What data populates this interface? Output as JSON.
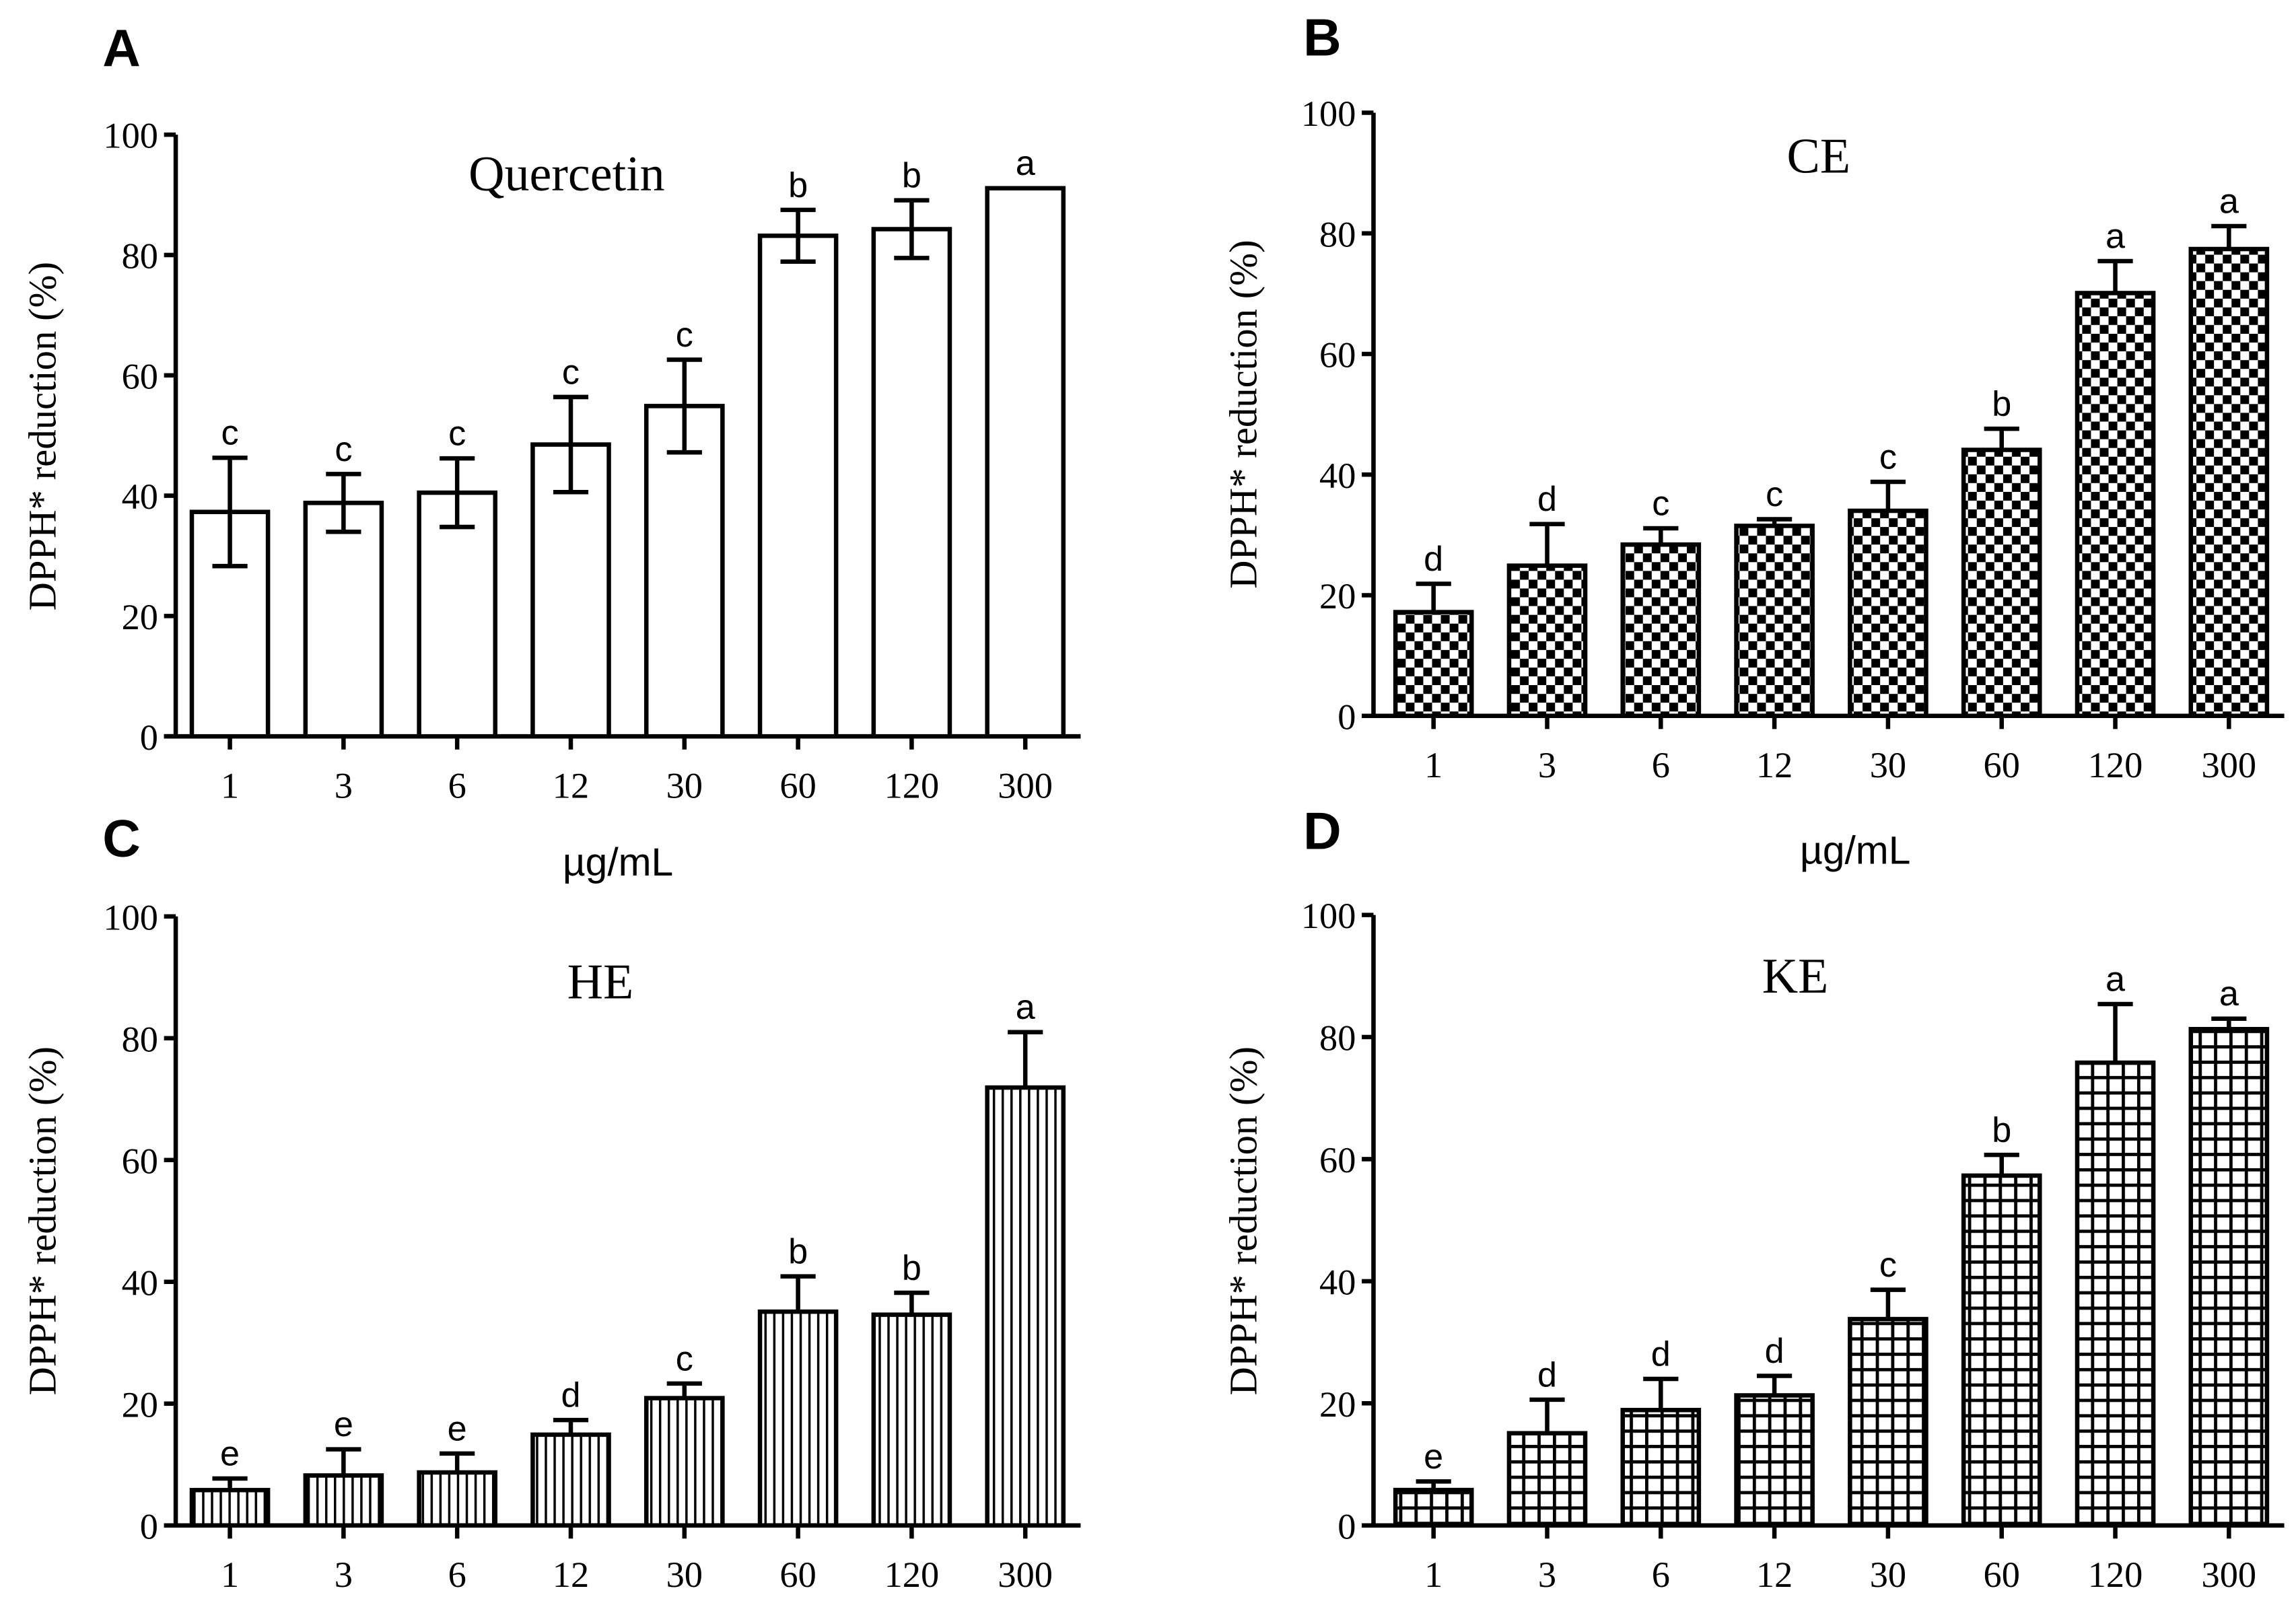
{
  "chart_data": [
    {
      "type": "bar",
      "panel": "A",
      "title": "Quercetin",
      "xlabel": "µg/mL",
      "ylabel": "DPPH* reduction (%)",
      "ylim": [
        0,
        100
      ],
      "yticks": [
        "0",
        "20",
        "40",
        "60",
        "80",
        "100"
      ],
      "pattern": "open",
      "categories": [
        "1",
        "3",
        "6",
        "12",
        "30",
        "60",
        "120",
        "300"
      ],
      "values": [
        37.3,
        38.8,
        40.5,
        48.5,
        54.9,
        83.2,
        84.3,
        91.1
      ],
      "errors": [
        9.0,
        4.8,
        5.7,
        7.9,
        7.7,
        4.3,
        4.8,
        0
      ],
      "error_style": "both",
      "letters": [
        "c",
        "c",
        "c",
        "c",
        "c",
        "b",
        "b",
        "a"
      ]
    },
    {
      "type": "bar",
      "panel": "B",
      "title": "CE",
      "xlabel": "µg/mL",
      "ylabel": "DPPH* reduction (%)",
      "ylim": [
        0,
        100
      ],
      "yticks": [
        "0",
        "20",
        "40",
        "60",
        "80",
        "100"
      ],
      "pattern": "checker",
      "categories": [
        "1",
        "3",
        "6",
        "12",
        "30",
        "60",
        "120",
        "300"
      ],
      "values": [
        17.2,
        24.9,
        28.4,
        31.5,
        34.0,
        44.1,
        70.1,
        77.4
      ],
      "errors": [
        4.7,
        6.9,
        2.7,
        1.1,
        4.8,
        3.5,
        5.3,
        3.8
      ],
      "error_style": "up",
      "letters": [
        "d",
        "d",
        "c",
        "c",
        "c",
        "b",
        "a",
        "a"
      ]
    },
    {
      "type": "bar",
      "panel": "C",
      "title": "HE",
      "ylabel": "DPPH* reduction (%)",
      "ylim": [
        0,
        100
      ],
      "yticks": [
        "0",
        "20",
        "40",
        "60",
        "80",
        "100"
      ],
      "pattern": "vstripe",
      "categories": [
        "1",
        "3",
        "6",
        "12",
        "30",
        "60",
        "120",
        "300"
      ],
      "values": [
        5.8,
        8.2,
        8.7,
        14.9,
        20.9,
        35.1,
        34.6,
        71.9
      ],
      "errors": [
        1.9,
        4.3,
        3.1,
        2.4,
        2.4,
        5.8,
        3.6,
        9.1
      ],
      "error_style": "up",
      "letters": [
        "e",
        "e",
        "e",
        "d",
        "c",
        "b",
        "b",
        "a"
      ]
    },
    {
      "type": "bar",
      "panel": "D",
      "title": "KE",
      "ylabel": "DPPH* reduction (%)",
      "ylim": [
        0,
        100
      ],
      "yticks": [
        "0",
        "20",
        "40",
        "60",
        "80",
        "100"
      ],
      "pattern": "grid",
      "categories": [
        "1",
        "3",
        "6",
        "12",
        "30",
        "60",
        "120",
        "300"
      ],
      "values": [
        5.8,
        15.1,
        18.9,
        21.3,
        33.8,
        57.3,
        75.8,
        81.3
      ],
      "errors": [
        1.4,
        5.5,
        5.1,
        3.2,
        4.8,
        3.4,
        9.6,
        1.7
      ],
      "error_style": "up",
      "letters": [
        "e",
        "d",
        "d",
        "d",
        "c",
        "b",
        "a",
        "a"
      ]
    }
  ]
}
